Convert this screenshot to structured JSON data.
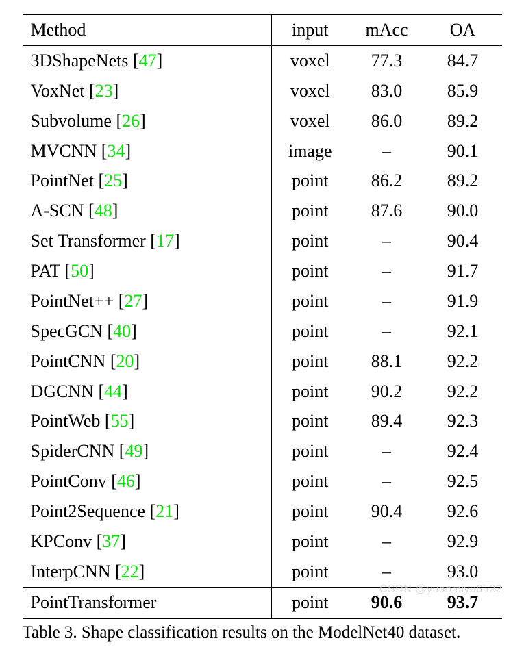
{
  "table": {
    "headers": {
      "method": "Method",
      "input": "input",
      "macc": "mAcc",
      "oa": "OA"
    },
    "cite_color": "#00e600",
    "rows": [
      {
        "name": "3DShapeNets",
        "cite": "47",
        "input": "voxel",
        "macc": "77.3",
        "oa": "84.7"
      },
      {
        "name": "VoxNet",
        "cite": "23",
        "input": "voxel",
        "macc": "83.0",
        "oa": "85.9"
      },
      {
        "name": "Subvolume",
        "cite": "26",
        "input": "voxel",
        "macc": "86.0",
        "oa": "89.2"
      },
      {
        "name": "MVCNN",
        "cite": "34",
        "input": "image",
        "macc": "–",
        "oa": "90.1"
      },
      {
        "name": "PointNet",
        "cite": "25",
        "input": "point",
        "macc": "86.2",
        "oa": "89.2"
      },
      {
        "name": "A-SCN",
        "cite": "48",
        "input": "point",
        "macc": "87.6",
        "oa": "90.0"
      },
      {
        "name": "Set Transformer",
        "cite": "17",
        "input": "point",
        "macc": "–",
        "oa": "90.4"
      },
      {
        "name": "PAT",
        "cite": "50",
        "input": "point",
        "macc": "–",
        "oa": "91.7"
      },
      {
        "name": "PointNet++",
        "cite": "27",
        "input": "point",
        "macc": "–",
        "oa": "91.9"
      },
      {
        "name": "SpecGCN",
        "cite": "40",
        "input": "point",
        "macc": "–",
        "oa": "92.1"
      },
      {
        "name": "PointCNN",
        "cite": "20",
        "input": "point",
        "macc": "88.1",
        "oa": "92.2"
      },
      {
        "name": "DGCNN",
        "cite": "44",
        "input": "point",
        "macc": "90.2",
        "oa": "92.2"
      },
      {
        "name": "PointWeb",
        "cite": "55",
        "input": "point",
        "macc": "89.4",
        "oa": "92.3"
      },
      {
        "name": "SpiderCNN",
        "cite": "49",
        "input": "point",
        "macc": "–",
        "oa": "92.4"
      },
      {
        "name": "PointConv",
        "cite": "46",
        "input": "point",
        "macc": "–",
        "oa": "92.5"
      },
      {
        "name": "Point2Sequence",
        "cite": "21",
        "input": "point",
        "macc": "90.4",
        "oa": "92.6"
      },
      {
        "name": "KPConv",
        "cite": "37",
        "input": "point",
        "macc": "–",
        "oa": "92.9"
      },
      {
        "name": "InterpCNN",
        "cite": "22",
        "input": "point",
        "macc": "–",
        "oa": "93.0"
      }
    ],
    "final_row": {
      "name": "PointTransformer",
      "input": "point",
      "macc": "90.6",
      "oa": "93.7"
    }
  },
  "caption": "Table 3. Shape classification results on the ModelNet40 dataset.",
  "watermark": "CSDN @yuanmiyu6522"
}
